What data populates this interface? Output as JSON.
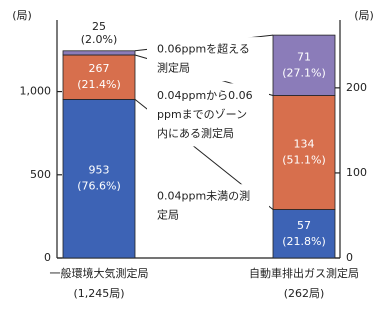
{
  "chart_data": {
    "type": "stacked-bar-dual-axis",
    "y_unit": "(局)",
    "y2_unit": "(局)",
    "ylim": [
      0,
      1370
    ],
    "yticks": [
      0,
      500,
      {
        "value": 1000,
        "label": "1,000"
      }
    ],
    "y2lim": [
      0,
      268
    ],
    "y2ticks": [
      0,
      100,
      200
    ],
    "colors": [
      "#3d63b5",
      "#d76f4d",
      "#8b7cb9"
    ],
    "bars": [
      {
        "label": "一般環境大気測定局",
        "total_label": "(1,245局)",
        "axis": "y",
        "values": [
          953,
          267,
          25
        ],
        "value_labels": [
          "953",
          "267",
          "25"
        ],
        "share_labels": [
          "(76.6%)",
          "(21.4%)",
          "(2.0%)"
        ]
      },
      {
        "label": "自動車排出ガス測定局",
        "total_label": "(262局)",
        "axis": "y2",
        "values": [
          57,
          134,
          71
        ],
        "value_labels": [
          "57",
          "134",
          "71"
        ],
        "share_labels": [
          "(21.8%)",
          "(51.1%)",
          "(27.1%)"
        ]
      }
    ],
    "annotations": [
      [
        "0.04ppm未満の測",
        "定局"
      ],
      [
        "0.04ppmから0.06",
        "ppmまでのゾーン",
        "内にある測定局"
      ],
      [
        "0.06ppmを超える",
        "測定局"
      ]
    ]
  }
}
